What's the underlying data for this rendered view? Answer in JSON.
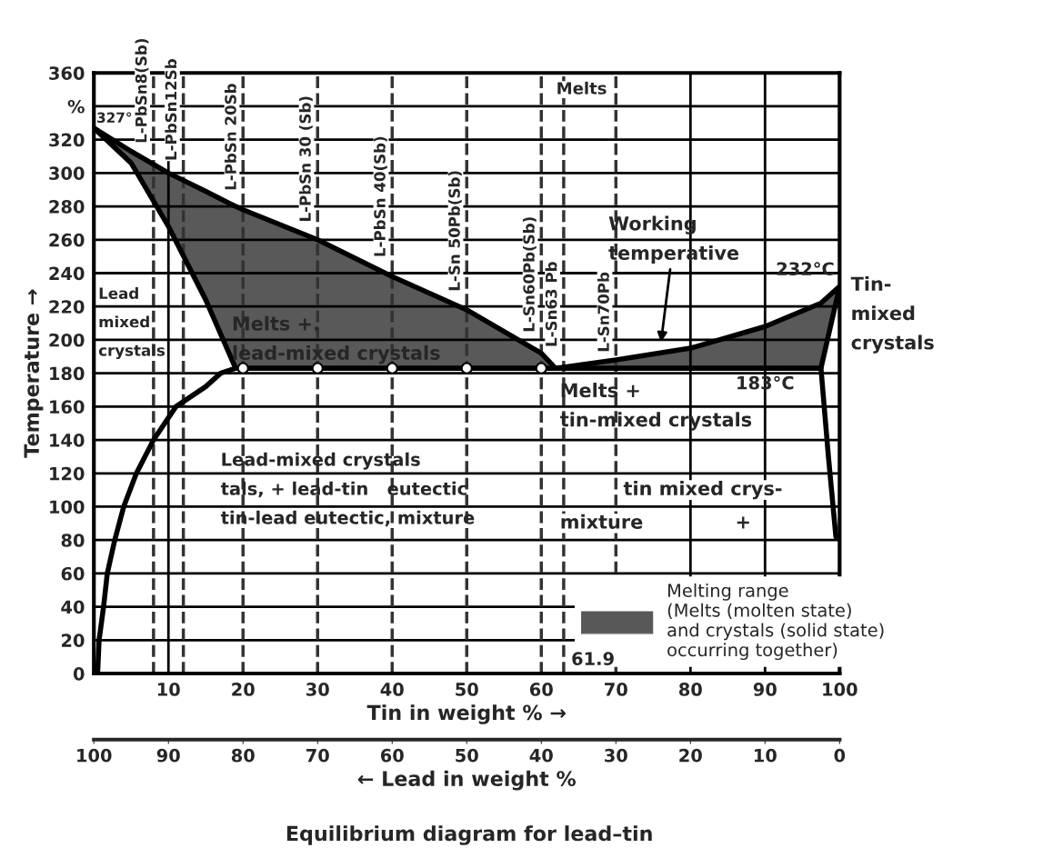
{
  "chart_data": {
    "type": "line",
    "title": "Equilibrium diagram for lead–tin",
    "xlabel": "Tin in weight % →",
    "x2label": "← Lead in weight %",
    "ylabel": "Temperature →",
    "xlim": [
      0,
      100
    ],
    "xticks": [
      {
        "value": 0,
        "label": null
      },
      10,
      20,
      30,
      40,
      50,
      60,
      70,
      80,
      90,
      100
    ],
    "x2lim": [
      100,
      0
    ],
    "x2ticks": [
      100,
      90,
      80,
      70,
      60,
      50,
      40,
      30,
      20,
      10,
      0
    ],
    "ylim": [
      0,
      360
    ],
    "yticks": [
      0,
      20,
      40,
      60,
      80,
      100,
      120,
      140,
      160,
      180,
      200,
      220,
      240,
      260,
      280,
      300,
      320,
      {
        "value": 340,
        "label": "%"
      },
      360
    ],
    "grid": "y",
    "legend": "bottom right",
    "series": [
      {
        "name": "Melting range\n(Melts (molten state)\nand crystals (solid state)\noccurring together)",
        "color": "#000000",
        "x": [
          0,
          5,
          10,
          15,
          19,
          20,
          30,
          40,
          50,
          60,
          61.9,
          70,
          80,
          90,
          97.5,
          100
        ],
        "values": [
          327,
          313,
          300,
          289,
          280,
          278,
          260,
          238,
          218,
          192,
          183,
          188,
          195,
          208,
          222,
          232
        ],
        "upper": [
          327,
          313,
          300,
          289,
          280,
          278,
          260,
          238,
          218,
          192,
          183,
          188,
          195,
          208,
          222,
          232
        ],
        "lower": [
          327,
          306,
          268,
          224,
          183,
          183,
          183,
          183,
          183,
          183,
          183,
          183,
          183,
          183,
          183,
          232
        ]
      },
      {
        "color": "#000000",
        "x": [
          0,
          5,
          10,
          15,
          19,
          20,
          30,
          40,
          50,
          60,
          61.9,
          70,
          80,
          90,
          97.5,
          100
        ],
        "values": [
          327,
          306,
          268,
          224,
          183,
          183,
          183,
          183,
          183,
          183,
          183,
          183,
          183,
          183,
          183,
          232
        ]
      },
      {
        "color": "#000000",
        "x": [
          19,
          17,
          15,
          11,
          8,
          5.7,
          4,
          2.8,
          1.8,
          1.3,
          0.7,
          0.5
        ],
        "values": [
          183,
          180,
          172,
          160,
          140,
          120,
          100,
          80,
          60,
          40,
          20,
          0
        ]
      },
      {
        "color": "#000000",
        "x": [
          97.5,
          98.5,
          99.5
        ],
        "values": [
          183,
          130,
          82
        ]
      },
      {
        "type": "scatter",
        "color": "#ffffff",
        "marker": "circle",
        "x": [
          20,
          30,
          40,
          50,
          60
        ],
        "values": [
          183,
          183,
          183,
          183,
          183
        ]
      }
    ],
    "ref_lines": [
      {
        "axis": "x",
        "value": 10
      },
      {
        "axis": "x",
        "value": 80
      },
      {
        "axis": "x",
        "value": 90
      },
      {
        "axis": "x",
        "value": 8,
        "label": "L-PbSn8(Sb)",
        "line_style": "dashed",
        "color": "#333333"
      },
      {
        "axis": "x",
        "value": 12,
        "label": "L-PbSn12Sb",
        "line_style": "dashed",
        "color": "#333333"
      },
      {
        "axis": "x",
        "value": 20,
        "label": "L-PbSn 20Sb",
        "line_style": "dashed",
        "color": "#333333"
      },
      {
        "axis": "x",
        "value": 30,
        "label": "L-PbSn 30 (Sb)",
        "line_style": "dashed",
        "color": "#333333"
      },
      {
        "axis": "x",
        "value": 40,
        "label": "L-PbSn 40(Sb)",
        "line_style": "dashed",
        "color": "#333333"
      },
      {
        "axis": "x",
        "value": 50,
        "label": "L-Sn 50Pb(Sb)",
        "line_style": "dashed",
        "color": "#333333"
      },
      {
        "axis": "x",
        "value": 60,
        "label": "L-Sn60Pb(Sb)",
        "line_style": "dashed",
        "color": "#333333"
      },
      {
        "axis": "x",
        "value": 63,
        "label": "L-Sn63 Pb",
        "line_style": "dashed",
        "color": "#333333"
      },
      {
        "axis": "x",
        "value": 70,
        "label": "L-Sn70Pb",
        "line_style": "dashed",
        "color": "#333333"
      }
    ],
    "annotations": [
      "Melts",
      "Lead\nmixed\ncrystals",
      "Melts +.\nlead-mixed crystals",
      "Melts +\ntin-mixed crystals",
      "Tin-\nmixed\ncrystals",
      "Lead-mixed crystals\ntals, + lead-tin   eutectic\ntin-lead eutectic, mixture",
      "tin mixed crys-",
      "mixture",
      "+",
      "Working\ntemperative",
      {
        "text": "327°",
        "x": 0,
        "y": 327
      },
      {
        "text": "232°C",
        "x": 100,
        "y": 232
      },
      {
        "text": "183°C",
        "x": 90,
        "y": 183
      },
      "61.9"
    ]
  }
}
